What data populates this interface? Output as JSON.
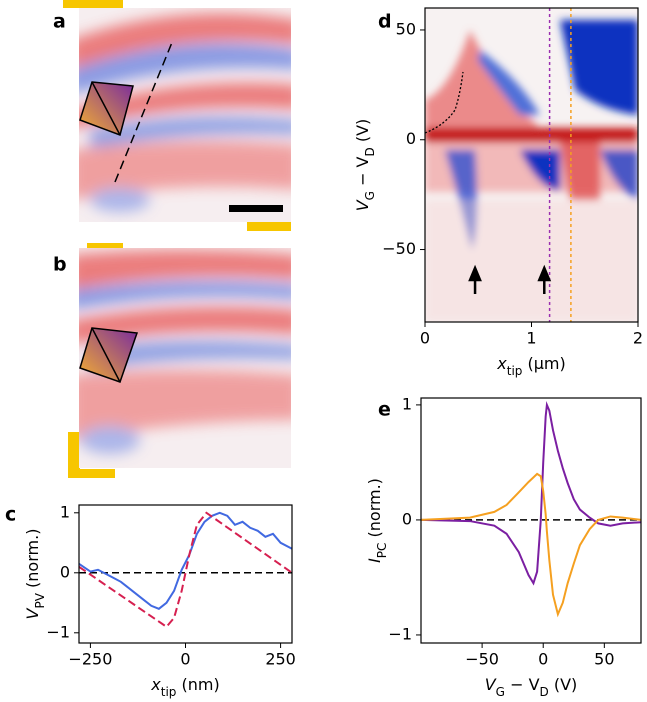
{
  "chart_data": [
    {
      "type": "image",
      "label": "a"
    },
    {
      "type": "image",
      "label": "b"
    },
    {
      "type": "line",
      "label": "c",
      "xlabel": [
        "x",
        "tip",
        " (nm)"
      ],
      "ylabel": [
        "V",
        "PV",
        " (norm.)"
      ],
      "xlim": [
        -280,
        280
      ],
      "ylim": [
        -1.17,
        1.13
      ],
      "xticks": [
        {
          "value": -250,
          "label": "−250"
        },
        0,
        250
      ],
      "yticks": [
        {
          "value": -1,
          "label": "−1"
        },
        0,
        1
      ],
      "hline": 0,
      "series": [
        {
          "color": "#4169e1",
          "style": "solid",
          "x": [
            -280,
            -250,
            -230,
            -200,
            -170,
            -140,
            -110,
            -90,
            -70,
            -50,
            -30,
            -10,
            10,
            30,
            50,
            70,
            90,
            110,
            130,
            150,
            170,
            190,
            210,
            230,
            250,
            280
          ],
          "values": [
            0.15,
            0.02,
            0.05,
            -0.05,
            -0.15,
            -0.3,
            -0.45,
            -0.55,
            -0.6,
            -0.5,
            -0.3,
            0.05,
            0.3,
            0.65,
            0.85,
            0.95,
            1.0,
            0.95,
            0.8,
            0.85,
            0.75,
            0.7,
            0.6,
            0.65,
            0.5,
            0.4
          ]
        },
        {
          "color": "#d62050",
          "style": "dashed",
          "x": [
            -280,
            -50,
            -30,
            -10,
            10,
            30,
            55,
            280
          ],
          "values": [
            0.1,
            -0.9,
            -0.75,
            -0.3,
            0.3,
            0.8,
            1.0,
            0.0
          ]
        }
      ]
    },
    {
      "type": "heatmap",
      "label": "d",
      "xlabel": [
        "x",
        "tip",
        " (μm)"
      ],
      "ylabel": [
        "V",
        "G",
        " − V",
        "D",
        " (V)"
      ],
      "xlim": [
        0,
        2
      ],
      "ylim": [
        -83,
        60
      ],
      "xticks": [
        0,
        1,
        2
      ],
      "yticks": [
        {
          "value": -50,
          "label": "−50"
        },
        0,
        50
      ],
      "vlines": [
        {
          "x": 1.17,
          "color": "#9a2fb0"
        },
        {
          "x": 1.37,
          "color": "#f5a020"
        }
      ],
      "arrows_x": [
        0.47,
        1.12
      ]
    },
    {
      "type": "line",
      "label": "e",
      "xlabel": [
        "V",
        "G",
        " − V",
        "D",
        " (V)"
      ],
      "ylabel": [
        "I",
        "PC",
        " (norm.)"
      ],
      "xlim": [
        -100,
        80
      ],
      "ylim": [
        -1.07,
        1.06
      ],
      "xticks": [
        {
          "value": -50,
          "label": "−50"
        },
        0,
        50
      ],
      "yticks": [
        {
          "value": -1,
          "label": "−1"
        },
        0,
        1
      ],
      "hline": 0,
      "series": [
        {
          "color": "#7b1fa2",
          "style": "solid",
          "x": [
            -100,
            -60,
            -40,
            -30,
            -20,
            -12,
            -8,
            -5,
            -2,
            0,
            2,
            3,
            5,
            8,
            12,
            16,
            20,
            25,
            30,
            38,
            45,
            55,
            65,
            80
          ],
          "values": [
            0,
            -0.01,
            -0.05,
            -0.12,
            -0.28,
            -0.48,
            -0.55,
            -0.45,
            0,
            0.5,
            0.9,
            1.0,
            0.95,
            0.78,
            0.6,
            0.45,
            0.32,
            0.18,
            0.09,
            0.02,
            -0.03,
            -0.05,
            -0.03,
            -0.02
          ]
        },
        {
          "color": "#f5a020",
          "style": "solid",
          "x": [
            -100,
            -60,
            -40,
            -30,
            -20,
            -12,
            -8,
            -5,
            -2,
            0,
            2,
            3,
            5,
            8,
            12,
            16,
            20,
            25,
            30,
            38,
            45,
            55,
            65,
            80
          ],
          "values": [
            0,
            0.02,
            0.07,
            0.13,
            0.24,
            0.33,
            0.37,
            0.4,
            0.38,
            0.25,
            0.05,
            -0.1,
            -0.35,
            -0.65,
            -0.82,
            -0.72,
            -0.55,
            -0.38,
            -0.22,
            -0.08,
            0,
            0.03,
            0.02,
            0
          ]
        }
      ]
    }
  ]
}
